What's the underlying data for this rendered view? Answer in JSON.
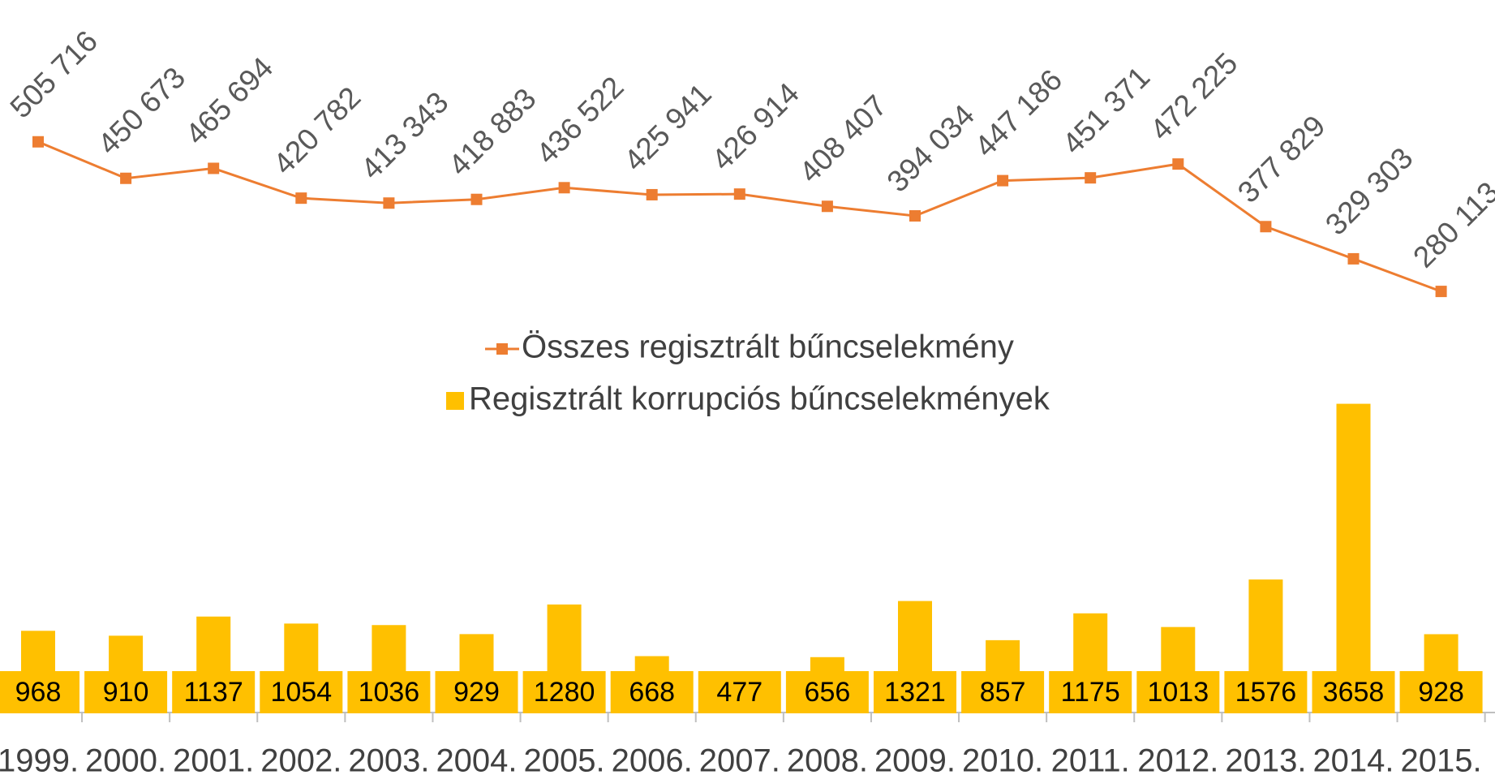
{
  "chart_data": {
    "type": "bar",
    "categories": [
      "1999.",
      "2000.",
      "2001.",
      "2002.",
      "2003.",
      "2004.",
      "2005.",
      "2006.",
      "2007.",
      "2008.",
      "2009.",
      "2010.",
      "2011.",
      "2012.",
      "2013.",
      "2014.",
      "2015."
    ],
    "ylim": [
      0,
      4000
    ],
    "y2lim": [
      0,
      700000
    ],
    "legend": "center",
    "series": [
      {
        "name": "Összes regisztrált bűncselekmény",
        "type": "line",
        "axis": "y2",
        "color": "#ed7d31",
        "values": [
          505716,
          450673,
          465694,
          420782,
          413343,
          418883,
          436522,
          425941,
          426914,
          408407,
          394034,
          447186,
          451371,
          472225,
          377829,
          329303,
          280113
        ],
        "value_labels": [
          "505 716",
          "450 673",
          "465 694",
          "420 782",
          "413 343",
          "418 883",
          "436 522",
          "425 941",
          "426 914",
          "408 407",
          "394 034",
          "447 186",
          "451 371",
          "472 225",
          "377 829",
          "329 303",
          "280 113"
        ]
      },
      {
        "name": "Regisztrált korrupciós bűncselekmények",
        "type": "bar",
        "color": "#ffc000",
        "values": [
          968,
          910,
          1137,
          1054,
          1036,
          929,
          1280,
          668,
          477,
          656,
          1321,
          857,
          1175,
          1013,
          1576,
          3658,
          928
        ]
      }
    ]
  }
}
